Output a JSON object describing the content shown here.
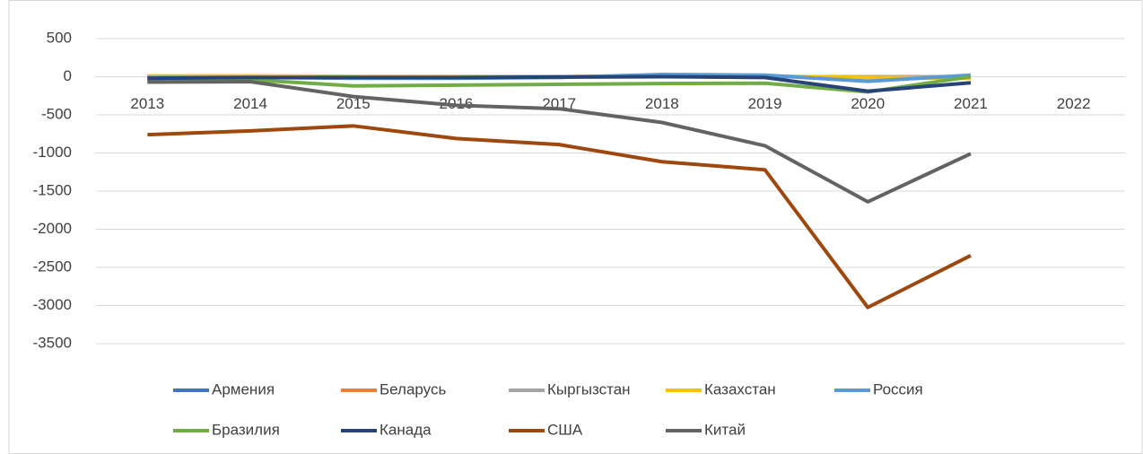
{
  "chart_data": {
    "type": "line",
    "categories": [
      "2013",
      "2014",
      "2015",
      "2016",
      "2017",
      "2018",
      "2019",
      "2020",
      "2021",
      "2022"
    ],
    "series": [
      {
        "name": "Армения",
        "color": "#4472c4",
        "values": [
          0,
          0,
          0,
          0,
          0,
          5,
          5,
          -10,
          5,
          null
        ]
      },
      {
        "name": "Беларусь",
        "color": "#ed7d31",
        "values": [
          0,
          0,
          0,
          0,
          0,
          0,
          0,
          -5,
          0,
          null
        ]
      },
      {
        "name": "Кыргызстан",
        "color": "#a5a5a5",
        "values": [
          0,
          0,
          0,
          0,
          0,
          0,
          0,
          0,
          0,
          null
        ]
      },
      {
        "name": "Казахстан",
        "color": "#ffc000",
        "values": [
          10,
          10,
          5,
          5,
          5,
          10,
          10,
          -10,
          -20,
          null
        ]
      },
      {
        "name": "Россия",
        "color": "#5b9bd5",
        "values": [
          -10,
          -10,
          -20,
          -20,
          -10,
          30,
          20,
          -60,
          20,
          null
        ]
      },
      {
        "name": "Бразилия",
        "color": "#70ad47",
        "values": [
          -50,
          -40,
          -120,
          -110,
          -100,
          -90,
          -85,
          -200,
          0,
          null
        ]
      },
      {
        "name": "Канада",
        "color": "#264478",
        "values": [
          -20,
          -10,
          -10,
          -10,
          -5,
          0,
          -10,
          -190,
          -80,
          null
        ]
      },
      {
        "name": "США",
        "color": "#9e480e",
        "values": [
          -760,
          -710,
          -645,
          -810,
          -890,
          -1115,
          -1220,
          -3025,
          -2345,
          null
        ]
      },
      {
        "name": "Китай",
        "color": "#636363",
        "values": [
          -70,
          -65,
          -260,
          -375,
          -420,
          -600,
          -905,
          -1640,
          -1010,
          null
        ]
      }
    ],
    "ylim": [
      -3500,
      500
    ],
    "yticks": [
      500,
      0,
      -500,
      -1000,
      -1500,
      -2000,
      -2500,
      -3000,
      -3500
    ],
    "grid": true,
    "legend": "bottom"
  }
}
